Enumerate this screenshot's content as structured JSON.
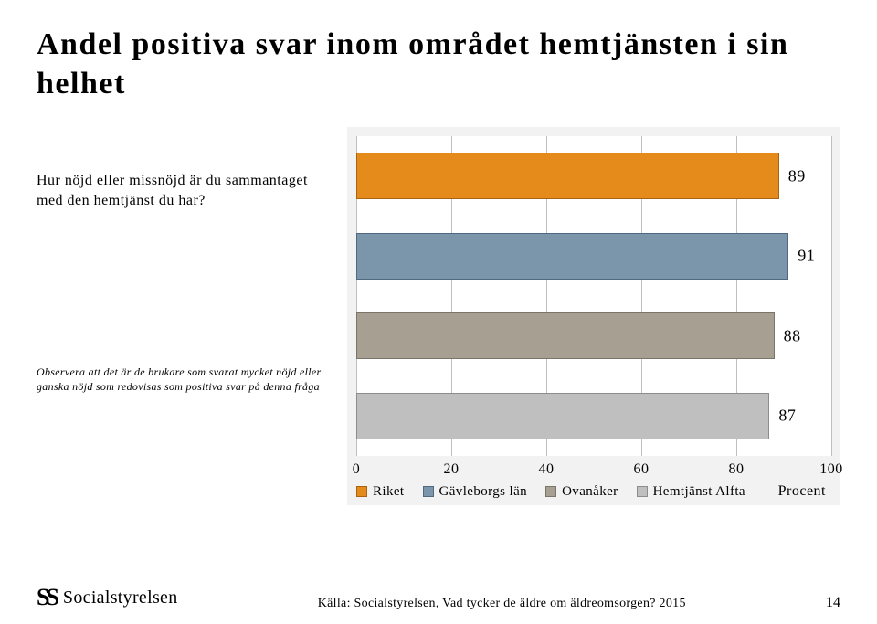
{
  "title": "Andel positiva svar inom området hemtjänsten i sin helhet",
  "question": "Hur nöjd eller missnöjd är du sammantaget med den hemtjänst du har?",
  "observe": "Observera att det är de brukare som svarat mycket nöjd eller ganska nöjd som redovisas som positiva svar på denna fråga",
  "chart": {
    "type": "bar-horizontal",
    "xmin": 0,
    "xmax": 100,
    "ticks": [
      0,
      20,
      40,
      60,
      80,
      100
    ],
    "y_label_right": "Procent",
    "background_color": "#f2f2f2",
    "plot_bg": "#ffffff",
    "grid_color": "#bfbfbf",
    "series": [
      {
        "name": "Riket",
        "value": 89,
        "color": "#e48b1c",
        "border": "#a86410"
      },
      {
        "name": "Gävleborgs län",
        "value": 91,
        "color": "#7b95ab",
        "border": "#4f6a80"
      },
      {
        "name": "Ovanåker",
        "value": 88,
        "color": "#a7a092",
        "border": "#7a7568"
      },
      {
        "name": "Hemtjänst Alfta",
        "value": 87,
        "color": "#bfbfbf",
        "border": "#8c8c8c"
      }
    ]
  },
  "logo_text": "Socialstyrelsen",
  "source": "Källa: Socialstyrelsen, Vad tycker de äldre om äldreomsorgen? 2015",
  "page_number": "14"
}
